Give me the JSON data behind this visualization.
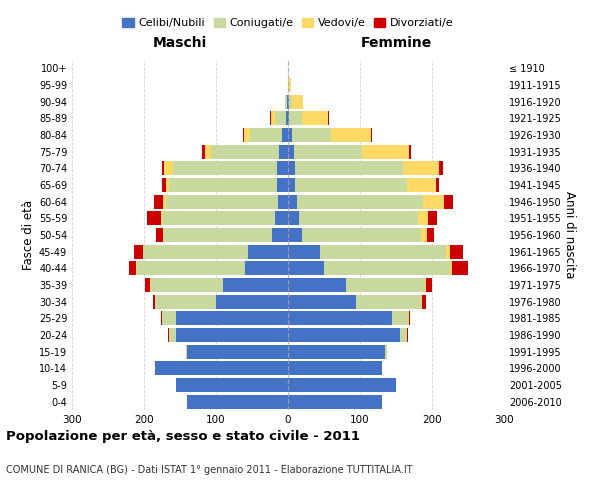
{
  "age_groups": [
    "0-4",
    "5-9",
    "10-14",
    "15-19",
    "20-24",
    "25-29",
    "30-34",
    "35-39",
    "40-44",
    "45-49",
    "50-54",
    "55-59",
    "60-64",
    "65-69",
    "70-74",
    "75-79",
    "80-84",
    "85-89",
    "90-94",
    "95-99",
    "100+"
  ],
  "birth_years": [
    "2006-2010",
    "2001-2005",
    "1996-2000",
    "1991-1995",
    "1986-1990",
    "1981-1985",
    "1976-1980",
    "1971-1975",
    "1966-1970",
    "1961-1965",
    "1956-1960",
    "1951-1955",
    "1946-1950",
    "1941-1945",
    "1936-1940",
    "1931-1935",
    "1926-1930",
    "1921-1925",
    "1916-1920",
    "1911-1915",
    "≤ 1910"
  ],
  "colors": {
    "celibi": "#4472C4",
    "coniugati": "#c8d9a0",
    "vedovi": "#ffd966",
    "divorziati": "#cc0000"
  },
  "maschi": {
    "celibi": [
      140,
      155,
      185,
      140,
      155,
      155,
      100,
      90,
      60,
      55,
      22,
      18,
      14,
      15,
      15,
      12,
      8,
      3,
      1,
      0,
      0
    ],
    "coniugati": [
      0,
      0,
      0,
      2,
      10,
      20,
      85,
      100,
      150,
      145,
      150,
      155,
      155,
      150,
      145,
      95,
      45,
      15,
      3,
      0,
      0
    ],
    "vedovi": [
      0,
      0,
      0,
      0,
      0,
      0,
      0,
      1,
      1,
      2,
      2,
      3,
      5,
      5,
      12,
      8,
      8,
      5,
      0,
      0,
      0
    ],
    "divorziati": [
      0,
      0,
      0,
      0,
      1,
      2,
      3,
      8,
      10,
      12,
      10,
      20,
      12,
      5,
      3,
      5,
      2,
      2,
      0,
      0,
      0
    ]
  },
  "femmine": {
    "nubili": [
      130,
      150,
      130,
      135,
      155,
      145,
      95,
      80,
      50,
      45,
      20,
      15,
      12,
      10,
      10,
      8,
      5,
      2,
      1,
      0,
      0
    ],
    "coniugate": [
      0,
      0,
      0,
      2,
      10,
      22,
      90,
      110,
      175,
      175,
      165,
      165,
      175,
      155,
      150,
      95,
      55,
      18,
      5,
      2,
      0
    ],
    "vedove": [
      0,
      0,
      0,
      0,
      0,
      1,
      1,
      2,
      3,
      5,
      8,
      15,
      30,
      40,
      50,
      65,
      55,
      35,
      15,
      2,
      0
    ],
    "divorziate": [
      0,
      0,
      0,
      0,
      1,
      2,
      5,
      8,
      22,
      18,
      10,
      12,
      12,
      5,
      5,
      3,
      2,
      2,
      0,
      0,
      0
    ]
  },
  "xlim": 300,
  "title": "Popolazione per età, sesso e stato civile - 2011",
  "subtitle": "COMUNE DI RANICA (BG) - Dati ISTAT 1° gennaio 2011 - Elaborazione TUTTITALIA.IT",
  "xlabel_left": "Maschi",
  "xlabel_right": "Femmine",
  "ylabel_left": "Fasce di età",
  "ylabel_right": "Anni di nascita",
  "legend_labels": [
    "Celibi/Nubili",
    "Coniugati/e",
    "Vedovi/e",
    "Divorziati/e"
  ]
}
